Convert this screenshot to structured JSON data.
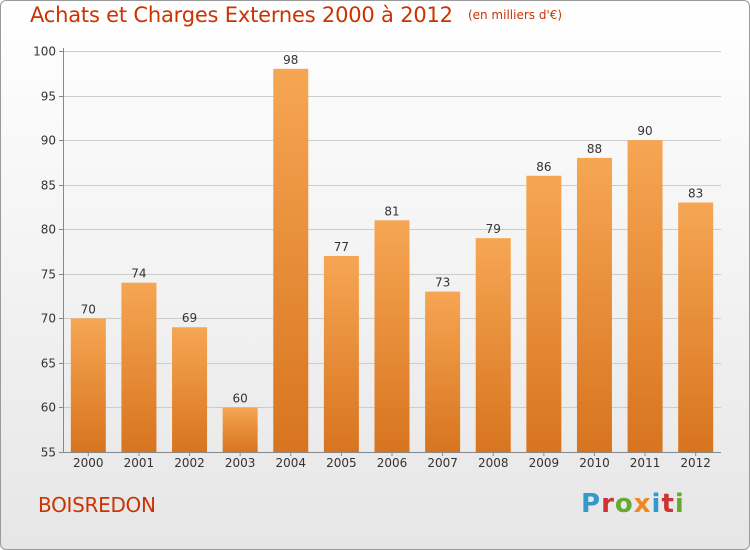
{
  "header": {
    "title": "Achats et Charges Externes 2000 à 2012",
    "subtitle": "(en milliers d'€)"
  },
  "footer": {
    "commune": "BOISREDON"
  },
  "logo": {
    "text": "Proxiti",
    "letter_colors": [
      "#3399cc",
      "#cc3333",
      "#66aa33",
      "#ee8822",
      "#3399cc",
      "#cc3333",
      "#66aa33"
    ]
  },
  "colors": {
    "bar_light": "#f6a653",
    "bar_dark": "#d8741f",
    "grid": "#cccccc",
    "axis": "#888888",
    "title": "#cc3300"
  },
  "chart_data": {
    "type": "bar",
    "categories": [
      "2000",
      "2001",
      "2002",
      "2003",
      "2004",
      "2005",
      "2006",
      "2007",
      "2008",
      "2009",
      "2010",
      "2011",
      "2012"
    ],
    "values": [
      70,
      74,
      69,
      60,
      98,
      77,
      81,
      73,
      79,
      86,
      88,
      90,
      83
    ],
    "ylim": [
      55,
      100
    ],
    "yticks": [
      55,
      60,
      65,
      70,
      75,
      80,
      85,
      90,
      95,
      100
    ],
    "grid": true,
    "legend": "none"
  }
}
